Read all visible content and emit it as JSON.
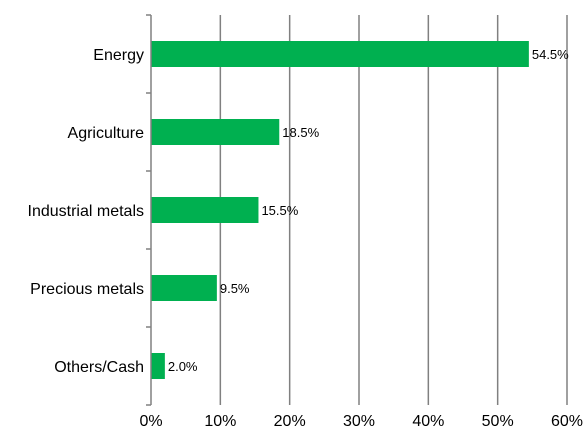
{
  "chart_data": {
    "type": "bar",
    "orientation": "horizontal",
    "categories": [
      "Energy",
      "Agriculture",
      "Industrial metals",
      "Precious metals",
      "Others/Cash"
    ],
    "values": [
      54.5,
      18.5,
      15.5,
      9.5,
      2.0
    ],
    "data_labels": [
      "54.5%",
      "18.5%",
      "15.5%",
      "9.5%",
      "2.0%"
    ],
    "x_ticks": [
      "0%",
      "10%",
      "20%",
      "30%",
      "40%",
      "50%",
      "60%"
    ],
    "xlim": [
      0,
      60
    ],
    "title": "",
    "xlabel": "",
    "ylabel": "",
    "grid": "vertical",
    "legend": "none",
    "bar_color": "#00B050",
    "grid_color": "#808080"
  }
}
